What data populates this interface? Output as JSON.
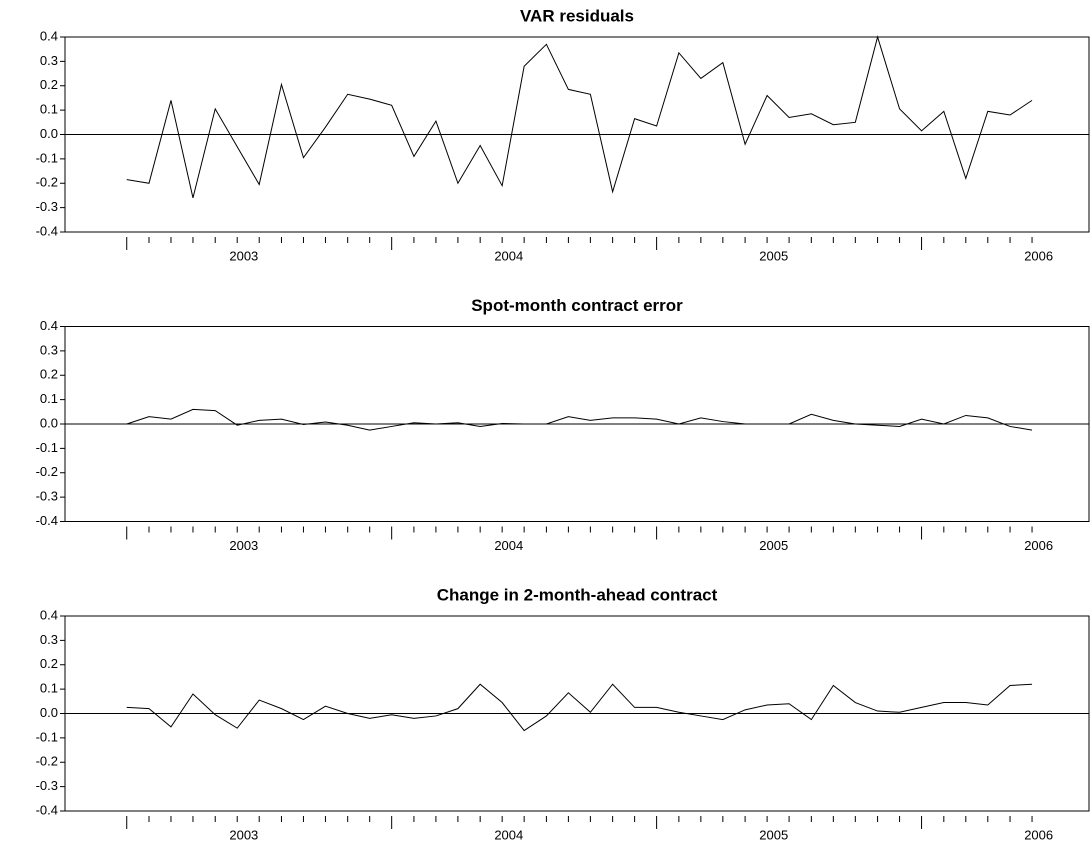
{
  "chart_data": [
    {
      "type": "line",
      "title": "VAR residuals",
      "color": "#000000",
      "hline": 0,
      "x": [
        2002.558,
        2002.642,
        2002.725,
        2002.808,
        2002.892,
        2002.975,
        2003.058,
        2003.142,
        2003.225,
        2003.308,
        2003.392,
        2003.475,
        2003.558,
        2003.642,
        2003.725,
        2003.808,
        2003.892,
        2003.975,
        2004.058,
        2004.142,
        2004.225,
        2004.308,
        2004.392,
        2004.475,
        2004.558,
        2004.642,
        2004.725,
        2004.808,
        2004.892,
        2004.975,
        2005.058,
        2005.142,
        2005.225,
        2005.308,
        2005.392,
        2005.475,
        2005.558,
        2005.642,
        2005.725,
        2005.808,
        2005.892,
        2005.975
      ],
      "values": [
        -0.185,
        -0.2,
        0.14,
        -0.26,
        0.105,
        -0.05,
        -0.205,
        0.205,
        -0.095,
        0.03,
        0.165,
        0.145,
        0.12,
        -0.09,
        0.055,
        -0.2,
        -0.045,
        -0.21,
        0.28,
        0.37,
        0.185,
        0.165,
        -0.235,
        0.065,
        0.035,
        0.335,
        0.23,
        0.295,
        -0.04,
        0.16,
        0.07,
        0.085,
        0.04,
        0.05,
        0.4,
        0.105,
        0.015,
        0.095,
        -0.18,
        0.095,
        0.08,
        0.14
      ],
      "xlim": [
        2002.325,
        2006.19
      ],
      "xticks": [
        2003,
        2004,
        2005,
        2006
      ],
      "ylim": [
        -0.4,
        0.4
      ],
      "yticks": [
        0.4,
        0.3,
        0.2,
        0.1,
        {
          "value": 0,
          "label": "0.0"
        },
        -0.1,
        -0.2,
        -0.3,
        -0.4
      ]
    },
    {
      "type": "line",
      "title": "Spot-month contract error",
      "color": "#000000",
      "hline": 0,
      "x": [
        2002.558,
        2002.642,
        2002.725,
        2002.808,
        2002.892,
        2002.975,
        2003.058,
        2003.142,
        2003.225,
        2003.308,
        2003.392,
        2003.475,
        2003.558,
        2003.642,
        2003.725,
        2003.808,
        2003.892,
        2003.975,
        2004.058,
        2004.142,
        2004.225,
        2004.308,
        2004.392,
        2004.475,
        2004.558,
        2004.642,
        2004.725,
        2004.808,
        2004.892,
        2004.975,
        2005.058,
        2005.142,
        2005.225,
        2005.308,
        2005.392,
        2005.475,
        2005.558,
        2005.642,
        2005.725,
        2005.808,
        2005.892,
        2005.975
      ],
      "values": [
        0.0,
        0.03,
        0.02,
        0.06,
        0.055,
        -0.005,
        0.015,
        0.02,
        -0.002,
        0.008,
        -0.005,
        -0.025,
        -0.01,
        0.005,
        0.0,
        0.005,
        -0.01,
        0.002,
        0.0,
        0.0,
        0.03,
        0.015,
        0.025,
        0.025,
        0.02,
        0.0,
        0.025,
        0.01,
        0.0,
        0.0,
        0.0,
        0.04,
        0.015,
        0.0,
        -0.005,
        -0.01,
        0.02,
        0.0,
        0.035,
        0.025,
        -0.01,
        -0.025
      ],
      "xlim": [
        2002.325,
        2006.19
      ],
      "xticks": [
        2003,
        2004,
        2005,
        2006
      ],
      "ylim": [
        -0.4,
        0.4
      ],
      "yticks": [
        0.4,
        0.3,
        0.2,
        0.1,
        {
          "value": 0,
          "label": "0.0"
        },
        -0.1,
        -0.2,
        -0.3,
        -0.4
      ]
    },
    {
      "type": "line",
      "title": "Change in 2-month-ahead contract",
      "color": "#000000",
      "hline": 0,
      "x": [
        2002.558,
        2002.642,
        2002.725,
        2002.808,
        2002.892,
        2002.975,
        2003.058,
        2003.142,
        2003.225,
        2003.308,
        2003.392,
        2003.475,
        2003.558,
        2003.642,
        2003.725,
        2003.808,
        2003.892,
        2003.975,
        2004.058,
        2004.142,
        2004.225,
        2004.308,
        2004.392,
        2004.475,
        2004.558,
        2004.642,
        2004.725,
        2004.808,
        2004.892,
        2004.975,
        2005.058,
        2005.142,
        2005.225,
        2005.308,
        2005.392,
        2005.475,
        2005.558,
        2005.642,
        2005.725,
        2005.808,
        2005.892,
        2005.975
      ],
      "values": [
        0.025,
        0.02,
        -0.055,
        0.08,
        -0.005,
        -0.06,
        0.055,
        0.02,
        -0.025,
        0.03,
        0.0,
        -0.02,
        -0.005,
        -0.02,
        -0.01,
        0.02,
        0.12,
        0.045,
        -0.07,
        -0.01,
        0.085,
        0.005,
        0.12,
        0.025,
        0.025,
        0.005,
        -0.01,
        -0.025,
        0.015,
        0.035,
        0.04,
        -0.025,
        0.115,
        0.045,
        0.01,
        0.005,
        0.025,
        0.045,
        0.045,
        0.035,
        0.115,
        0.12
      ],
      "xlim": [
        2002.325,
        2006.19
      ],
      "xticks": [
        2003,
        2004,
        2005,
        2006
      ],
      "ylim": [
        -0.4,
        0.4
      ],
      "yticks": [
        0.4,
        0.3,
        0.2,
        0.1,
        {
          "value": 0,
          "label": "0.0"
        },
        -0.1,
        -0.2,
        -0.3,
        -0.4
      ]
    }
  ]
}
